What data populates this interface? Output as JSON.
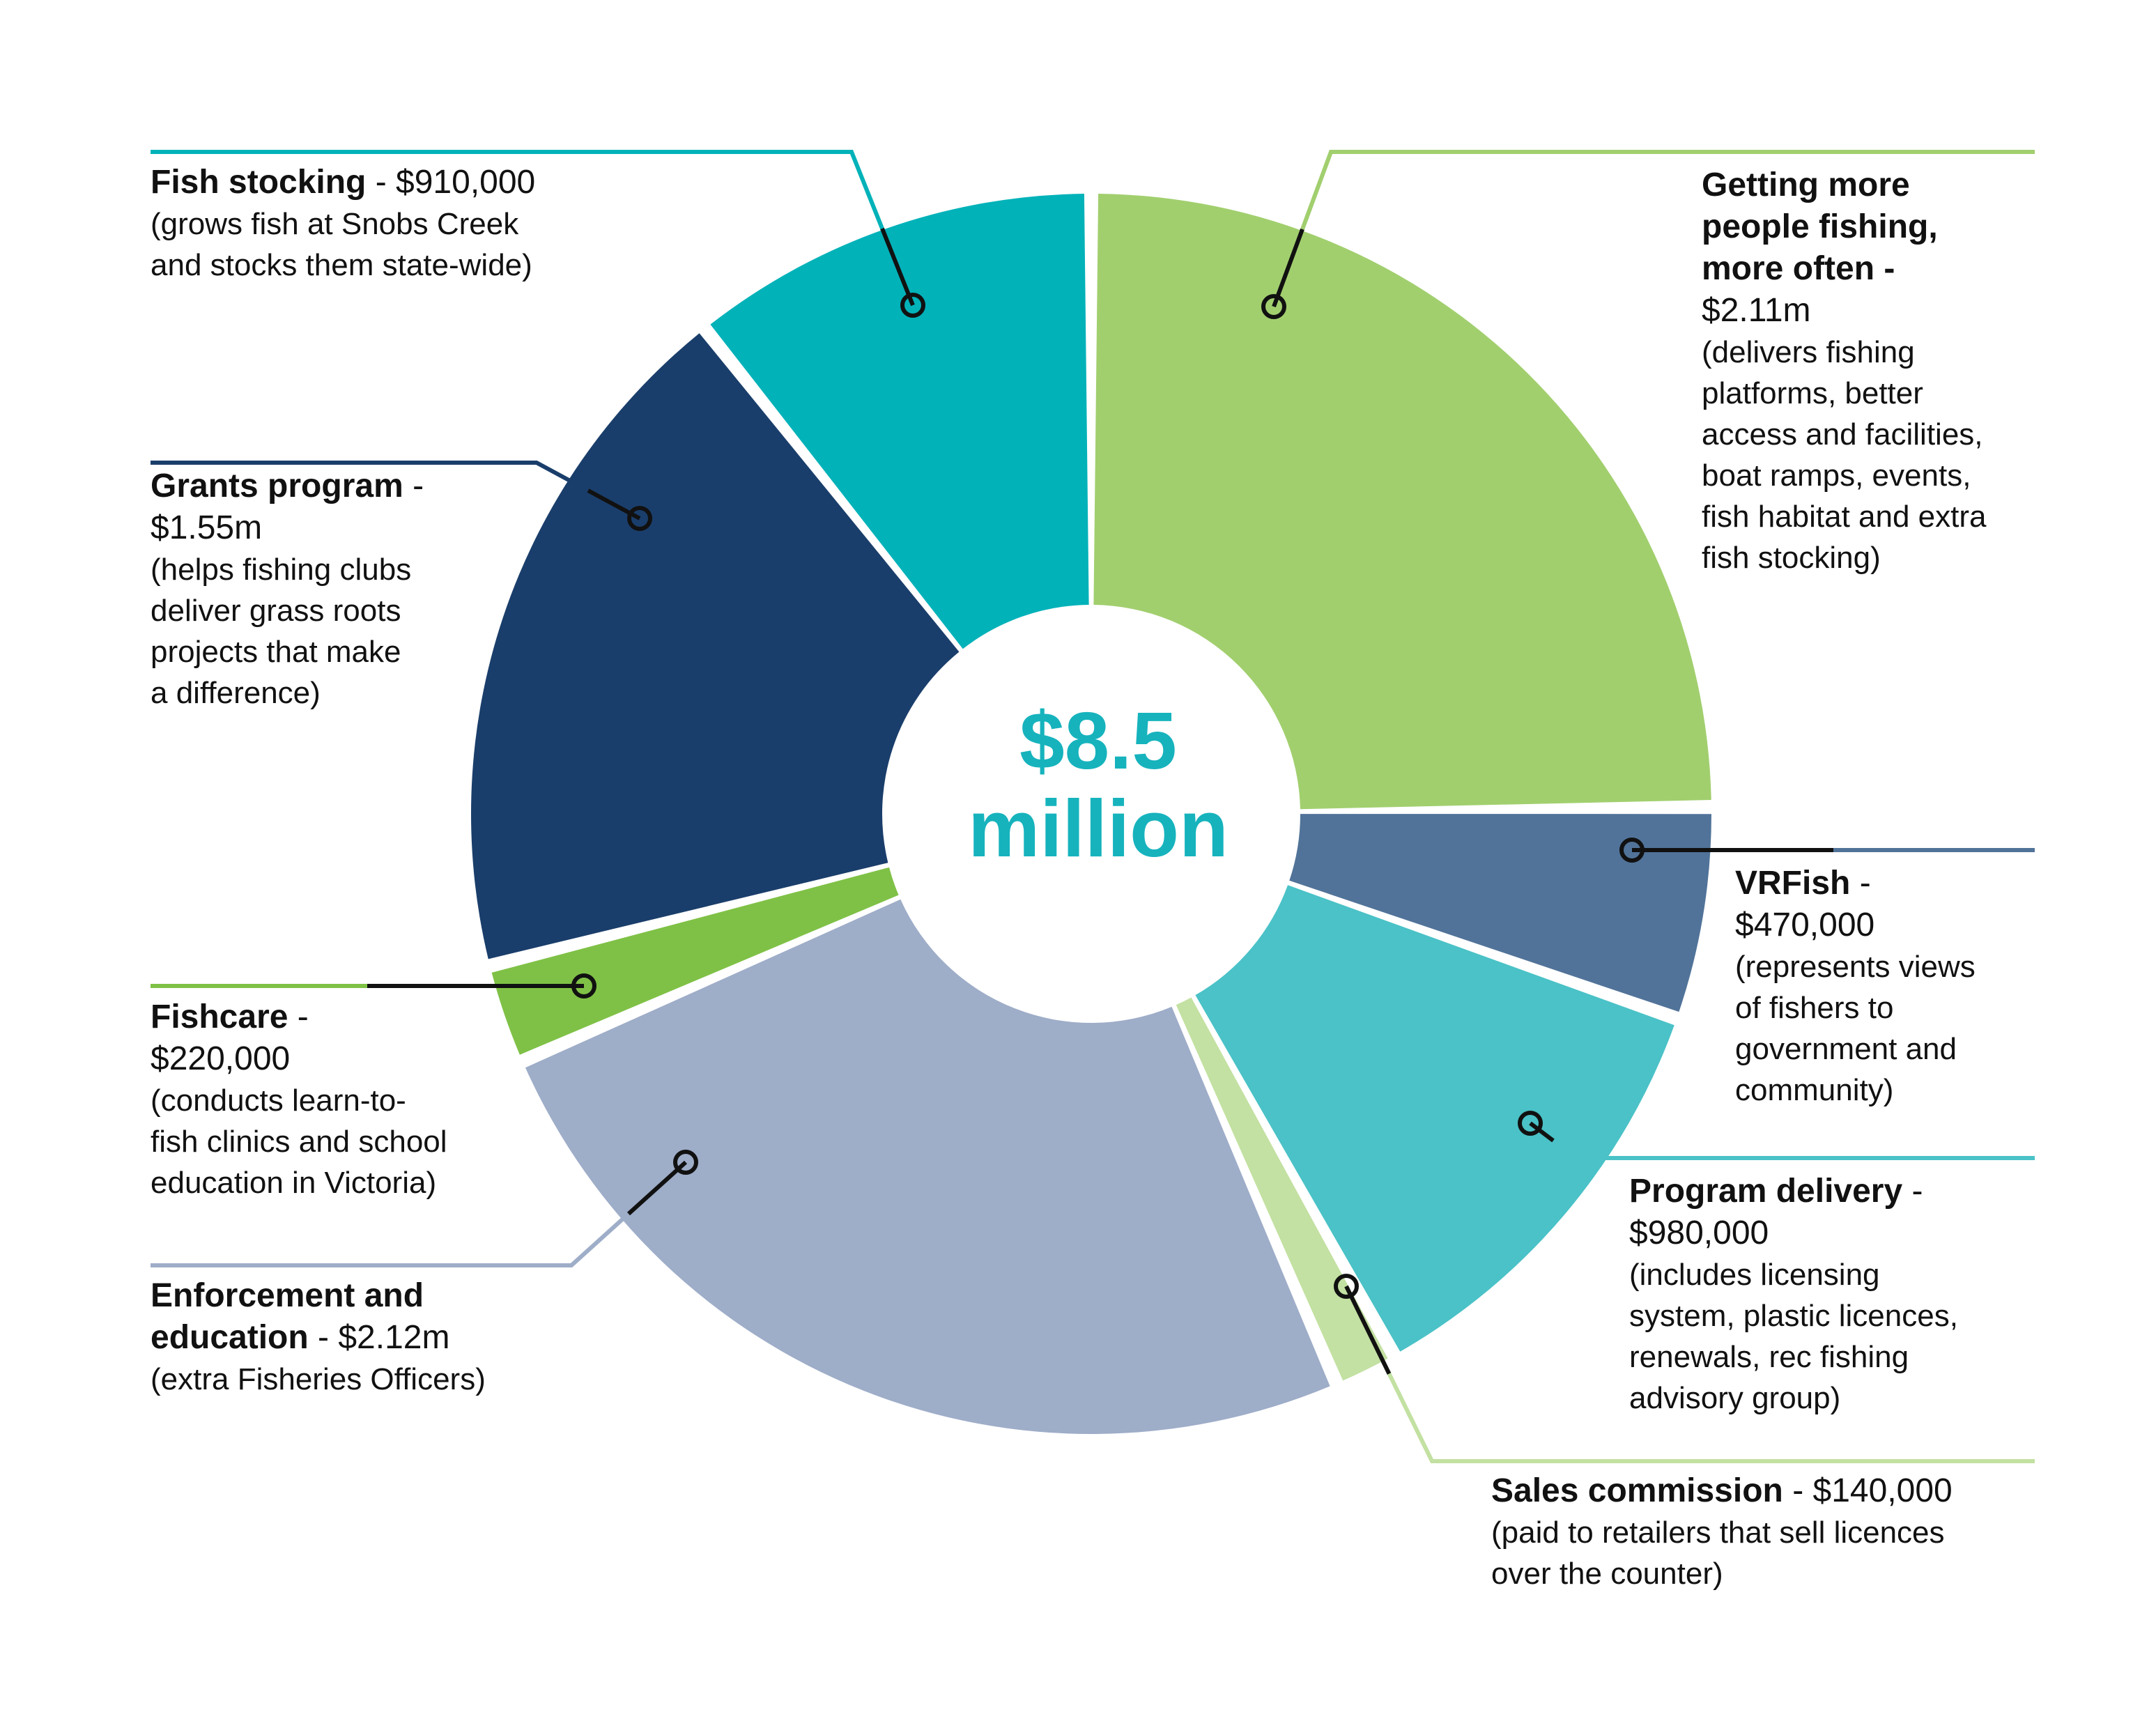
{
  "chart_data": {
    "type": "pie",
    "style": "donut",
    "center_label_line1": "$8.5",
    "center_label_line2": "million",
    "slices": [
      {
        "id": "getting",
        "name_line1": "Getting more",
        "name_line2": "people fishing,",
        "name_line3": "more often",
        "amount": "$2.11m",
        "value": 2110000,
        "desc_lines": [
          "(delivers fishing",
          "platforms, better",
          "access and facilities,",
          "boat ramps, events,",
          "fish habitat and extra",
          "fish stocking)"
        ],
        "color": "#a1cf6e"
      },
      {
        "id": "vrfish",
        "name": "VRFish",
        "amount": "$470,000",
        "value": 470000,
        "desc_lines": [
          "(represents views",
          "of fishers to",
          "government and",
          "community)"
        ],
        "color": "#517399"
      },
      {
        "id": "program",
        "name": "Program delivery",
        "amount": "$980,000",
        "value": 980000,
        "desc_lines": [
          "(includes licensing",
          "system, plastic licences,",
          "renewals, rec fishing",
          "advisory group)"
        ],
        "color": "#4ac2c7"
      },
      {
        "id": "sales",
        "name": "Sales commission",
        "amount": "$140,000",
        "value": 140000,
        "desc_lines": [
          "(paid to retailers that sell licences",
          "over the counter)"
        ],
        "color": "#c3e1a2"
      },
      {
        "id": "enforcement",
        "name_line1": "Enforcement and",
        "name_line2": "education",
        "amount": "$2.12m",
        "value": 2120000,
        "desc_lines": [
          "(extra Fisheries Officers)"
        ],
        "color": "#9eadc8"
      },
      {
        "id": "fishcare",
        "name": "Fishcare",
        "amount": "$220,000",
        "value": 220000,
        "desc_lines": [
          "(conducts learn-to-",
          "fish clinics and school",
          "education in Victoria)"
        ],
        "color": "#7fc146"
      },
      {
        "id": "grants",
        "name": "Grants program",
        "amount": "$1.55m",
        "value": 1550000,
        "desc_lines": [
          "(helps fishing clubs",
          "deliver grass roots",
          "projects that make",
          "a difference)"
        ],
        "color": "#1a3e6b"
      },
      {
        "id": "stocking",
        "name": "Fish stocking",
        "amount": "$910,000",
        "value": 910000,
        "desc_lines": [
          "(grows fish at Snobs Creek",
          "and stocks them state-wide)"
        ],
        "color": "#02b2b9"
      }
    ]
  }
}
